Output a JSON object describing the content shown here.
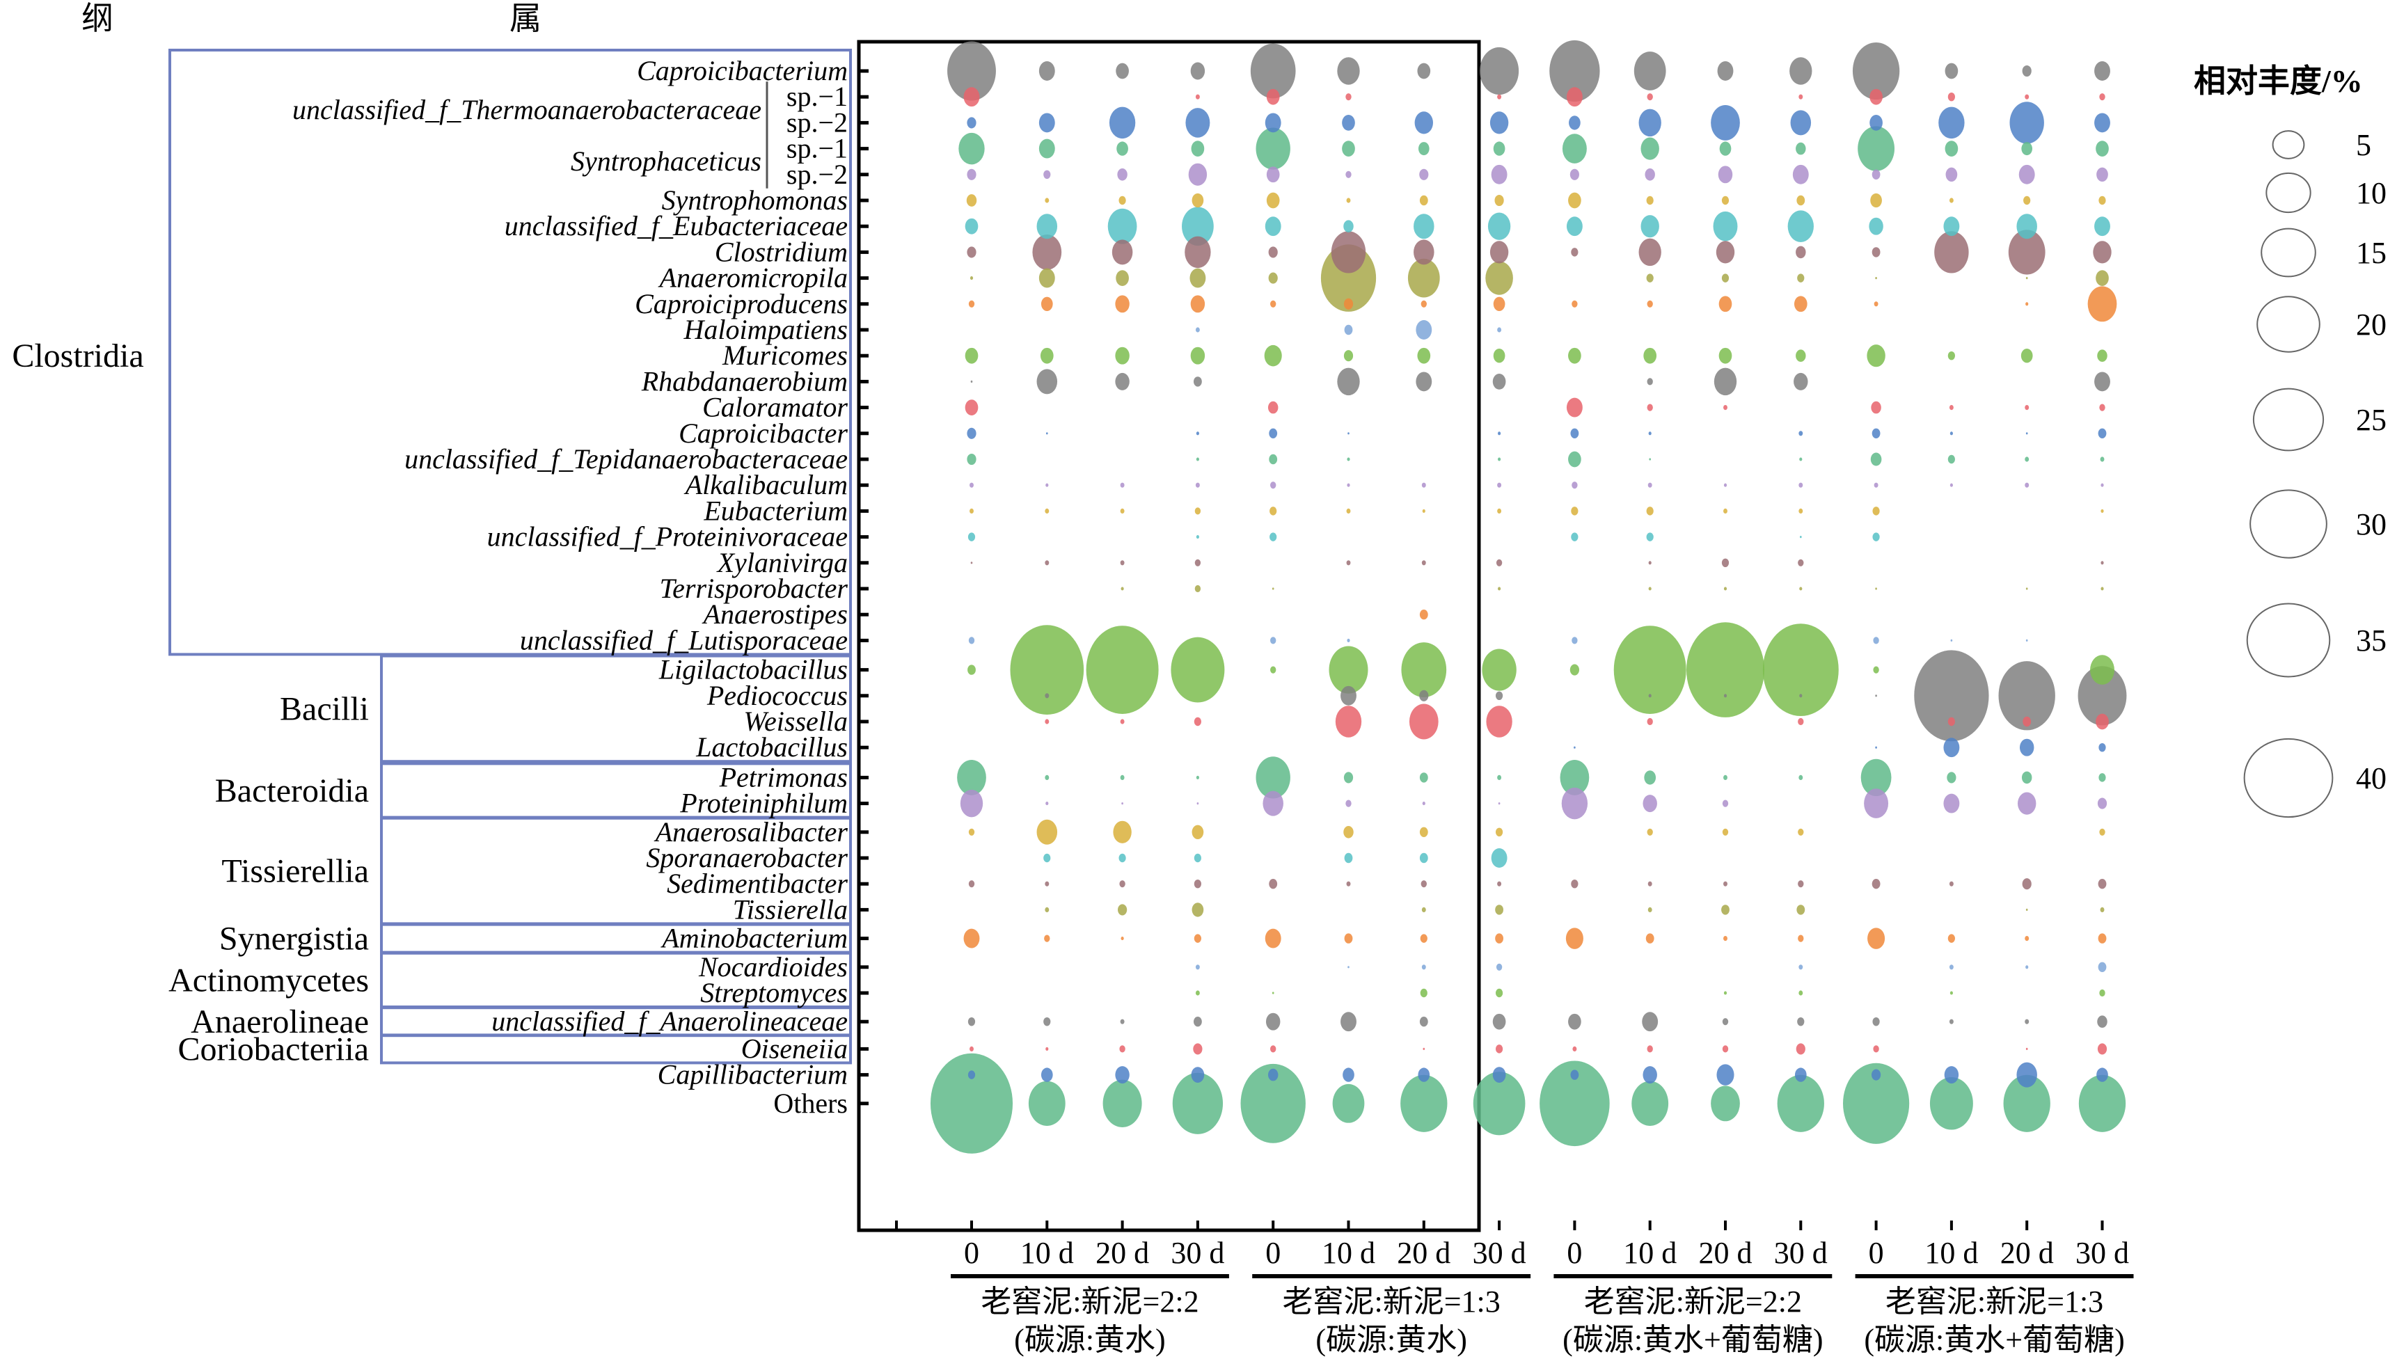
{
  "chart_data": {
    "type": "bubble",
    "title": "",
    "header_class": "纲",
    "header_genus": "属",
    "size_legend": {
      "title": "相对丰度/%",
      "values": [
        5,
        10,
        15,
        20,
        25,
        30,
        35,
        40
      ],
      "labels": [
        "5",
        "10",
        "15",
        "20",
        "25",
        "30",
        "35",
        "40"
      ]
    },
    "x_tick_labels": [
      "0",
      "10 d",
      "20 d",
      "30 d",
      "0",
      "10 d",
      "20 d",
      "30 d",
      "0",
      "10 d",
      "20 d",
      "30 d",
      "0",
      "10 d",
      "20 d",
      "30 d"
    ],
    "groups": [
      {
        "line1": "老窖泥:新泥=2:2",
        "line2": "(碳源:黄水)"
      },
      {
        "line1": "老窖泥:新泥=1:3",
        "line2": "(碳源:黄水)"
      },
      {
        "line1": "老窖泥:新泥=2:2",
        "line2": "(碳源:黄水+葡萄糖)"
      },
      {
        "line1": "老窖泥:新泥=1:3",
        "line2": "(碳源:黄水+葡萄糖)"
      }
    ],
    "classes": [
      {
        "name": "Clostridia",
        "from": 0,
        "to": 22
      },
      {
        "name": "Bacilli",
        "from": 23,
        "to": 26
      },
      {
        "name": "Bacteroidia",
        "from": 27,
        "to": 28
      },
      {
        "name": "Tissierellia",
        "from": 29,
        "to": 32
      },
      {
        "name": "Synergistia",
        "from": 33,
        "to": 33
      },
      {
        "name": "Actinomycetes",
        "from": 34,
        "to": 35
      },
      {
        "name": "Anaerolineae",
        "from": 36,
        "to": 36
      },
      {
        "name": "Coriobacteriia",
        "from": 37,
        "to": 37
      }
    ],
    "bracket_groups": [
      {
        "name": "unclassified_f_Thermoanaerobacteraceae",
        "rows": [
          1,
          2
        ]
      },
      {
        "name": "Syntrophaceticus",
        "rows": [
          3,
          4
        ]
      }
    ],
    "rows": [
      {
        "label": "Caproicibacterium",
        "italic": true,
        "color": "#808080",
        "values": [
          14,
          1.5,
          1,
          1.2,
          12,
          3,
          1,
          9,
          15,
          6,
          1.5,
          3,
          13,
          1,
          0.5,
          1.5
        ]
      },
      {
        "label": "sp.−1",
        "italic": false,
        "color": "#e8636b",
        "values": [
          1.5,
          0,
          0,
          0.1,
          1,
          0.2,
          0,
          0.1,
          1.5,
          0.2,
          0,
          0.1,
          1,
          0.3,
          0.1,
          0.2
        ]
      },
      {
        "label": "sp.−2",
        "italic": false,
        "color": "#4f81c7",
        "values": [
          0.5,
          1.5,
          4,
          3.5,
          1.5,
          1,
          2,
          2,
          0.8,
          3,
          5,
          2.5,
          1,
          4,
          7,
          1.5
        ]
      },
      {
        "label": "sp.−1",
        "italic": false,
        "color": "#5fba8a",
        "values": [
          4,
          1.5,
          0.8,
          1,
          7,
          1,
          0.7,
          0.8,
          3.5,
          2,
          0.8,
          0.6,
          8,
          1,
          0.7,
          1
        ]
      },
      {
        "label": "sp.−2",
        "italic": false,
        "color": "#ad8fcb",
        "values": [
          0.5,
          0.3,
          0.6,
          2,
          1,
          0.2,
          0.5,
          1.5,
          0.5,
          0.6,
          1.2,
          1.5,
          0.4,
          0.8,
          1.5,
          0.8
        ]
      },
      {
        "label": "Syntrophomonas",
        "italic": true,
        "color": "#d9b03b",
        "values": [
          0.6,
          0.1,
          0.3,
          0.8,
          1,
          0.1,
          0.4,
          0.5,
          1,
          0.3,
          0.3,
          0.4,
          0.8,
          0.1,
          0.3,
          0.3
        ]
      },
      {
        "label": "unclassified_f_Eubacteriaceae",
        "italic": true,
        "color": "#56c1c6",
        "values": [
          1,
          2.5,
          5,
          6,
          1.5,
          0.6,
          2.5,
          3,
          1.5,
          2,
          3.5,
          4,
          1.2,
          1.5,
          2.5,
          1.5
        ]
      },
      {
        "label": "Clostridium",
        "italic": true,
        "color": "#9b6e74",
        "values": [
          0.5,
          5,
          2.5,
          4,
          0.5,
          7,
          2.5,
          2,
          0.3,
          3,
          2,
          0.6,
          0.4,
          7,
          8,
          2
        ]
      },
      {
        "label": "Anaeromicropila",
        "italic": true,
        "color": "#a8a84a",
        "values": [
          0.05,
          1.5,
          1,
          1.5,
          0.5,
          18,
          6,
          4.5,
          0,
          0.3,
          0.3,
          0.3,
          0.02,
          0,
          0.02,
          1
        ]
      },
      {
        "label": "Caproiciproducens",
        "italic": true,
        "color": "#f0883a",
        "values": [
          0.2,
          0.8,
          1.2,
          1.2,
          0.2,
          0.5,
          0.2,
          0.8,
          0.2,
          0.2,
          1,
          1,
          0.1,
          0,
          0.05,
          5
        ]
      },
      {
        "label": "Haloimpatiens",
        "italic": true,
        "color": "#7ea6d8",
        "values": [
          0,
          0,
          0,
          0.1,
          0,
          0.4,
          1.5,
          0.1,
          0,
          0,
          0,
          0,
          0,
          0,
          0,
          0
        ]
      },
      {
        "label": "Muricomes",
        "italic": true,
        "color": "#7cbd4f",
        "values": [
          1,
          1,
          1.2,
          1.2,
          1.8,
          0.5,
          1,
          0.8,
          1,
          1,
          1,
          0.6,
          2,
          0.3,
          0.8,
          0.6
        ]
      },
      {
        "label": "Rhabdanaerobium",
        "italic": true,
        "color": "#808080",
        "values": [
          0.02,
          2.5,
          1.2,
          0.4,
          0,
          3,
          1.5,
          1,
          0,
          0.2,
          3,
          1.2,
          0,
          0,
          0,
          1.5
        ]
      },
      {
        "label": "Caloramator",
        "italic": true,
        "color": "#e8636b",
        "values": [
          1,
          0,
          0,
          0,
          0.6,
          0,
          0,
          0,
          1.5,
          0.2,
          0.1,
          0,
          0.6,
          0.1,
          0.1,
          0.2
        ]
      },
      {
        "label": "Caproicibacter",
        "italic": true,
        "color": "#4f81c7",
        "values": [
          0.5,
          0.02,
          0,
          0.05,
          0.4,
          0.02,
          0,
          0.05,
          0.4,
          0.05,
          0,
          0.1,
          0.4,
          0.05,
          0.02,
          0.4
        ]
      },
      {
        "label": "unclassified_f_Tepidanaerobacteraceae",
        "italic": true,
        "color": "#5fba8a",
        "values": [
          0.5,
          0,
          0,
          0.05,
          0.4,
          0.05,
          0,
          0.05,
          1,
          0.02,
          0,
          0.05,
          0.7,
          0.3,
          0.1,
          0.1
        ]
      },
      {
        "label": "Alkalibaculum",
        "italic": true,
        "color": "#ad8fcb",
        "values": [
          0.1,
          0.05,
          0.1,
          0.1,
          0.2,
          0.05,
          0.1,
          0.1,
          0.2,
          0.1,
          0.05,
          0.1,
          0.1,
          0.05,
          0.1,
          0.05
        ]
      },
      {
        "label": "Eubacterium",
        "italic": true,
        "color": "#d9b03b",
        "values": [
          0.1,
          0.1,
          0.1,
          0.2,
          0.3,
          0.1,
          0.05,
          0.1,
          0.3,
          0.3,
          0.1,
          0.1,
          0.3,
          0,
          0,
          0.05
        ]
      },
      {
        "label": "unclassified_f_Proteinivoraceae",
        "italic": true,
        "color": "#56c1c6",
        "values": [
          0.3,
          0,
          0,
          0.05,
          0.3,
          0,
          0,
          0,
          0.3,
          0.3,
          0,
          0.02,
          0.3,
          0,
          0,
          0
        ]
      },
      {
        "label": "Xylanivirga",
        "italic": true,
        "color": "#9b6e74",
        "values": [
          0.02,
          0.1,
          0.1,
          0.2,
          0,
          0.1,
          0.1,
          0.2,
          0,
          0.05,
          0.3,
          0.2,
          0,
          0,
          0,
          0.05
        ]
      },
      {
        "label": "Terrisporobacter",
        "italic": true,
        "color": "#a8a84a",
        "values": [
          0,
          0,
          0.05,
          0.2,
          0.02,
          0,
          0,
          0.05,
          0,
          0.05,
          0.05,
          0.05,
          0.02,
          0,
          0.02,
          0.05
        ]
      },
      {
        "label": "Anaerostipes",
        "italic": true,
        "color": "#f0883a",
        "values": [
          0,
          0,
          0,
          0,
          0,
          0,
          0.4,
          0,
          0,
          0,
          0,
          0,
          0,
          0,
          0,
          0
        ]
      },
      {
        "label": "unclassified_f_Lutisporaceae",
        "italic": true,
        "color": "#7ea6d8",
        "values": [
          0.2,
          0,
          0,
          0,
          0.2,
          0.05,
          0,
          0,
          0.2,
          0,
          0,
          0,
          0.2,
          0.02,
          0.02,
          0
        ]
      },
      {
        "label": "Ligilactobacillus",
        "italic": true,
        "color": "#7cbd4f",
        "values": [
          0.4,
          32,
          31,
          17,
          0.2,
          9,
          12,
          7,
          0.5,
          31,
          36,
          34,
          0.2,
          0,
          0,
          3.5
        ]
      },
      {
        "label": "Pediococcus",
        "italic": true,
        "color": "#808080",
        "values": [
          0,
          0.1,
          0,
          0,
          0,
          1.5,
          0.5,
          0.3,
          0,
          0.05,
          0.05,
          0.05,
          0.02,
          33,
          19,
          14
        ]
      },
      {
        "label": "Weissella",
        "italic": true,
        "color": "#e8636b",
        "values": [
          0,
          0.1,
          0.1,
          0.3,
          0,
          4,
          5,
          4,
          0,
          0.2,
          0,
          0.2,
          0,
          0.3,
          0.4,
          1
        ]
      },
      {
        "label": "Lactobacillus",
        "italic": true,
        "color": "#4f81c7",
        "values": [
          0,
          0,
          0,
          0,
          0,
          0,
          0,
          0,
          0.02,
          0,
          0,
          0,
          0.02,
          1.5,
          1.2,
          0.3
        ]
      },
      {
        "label": "Petrimonas",
        "italic": true,
        "color": "#5fba8a",
        "values": [
          5,
          0.1,
          0.1,
          0.05,
          7,
          0.5,
          0.4,
          0.1,
          5,
          0.8,
          0.1,
          0.1,
          5.5,
          0.5,
          0.6,
          0.3
        ]
      },
      {
        "label": "Proteiniphilum",
        "italic": true,
        "color": "#ad8fcb",
        "values": [
          3,
          0.05,
          0.02,
          0.02,
          2.5,
          0.2,
          0.05,
          0.02,
          4,
          1.2,
          0.2,
          0,
          3.5,
          1.5,
          2,
          0.5
        ]
      },
      {
        "label": "Anaerosalibacter",
        "italic": true,
        "color": "#d9b03b",
        "values": [
          0.2,
          2.5,
          2,
          0.8,
          0,
          0.6,
          0.4,
          0.3,
          0,
          0.2,
          0.2,
          0.2,
          0,
          0,
          0,
          0.2
        ]
      },
      {
        "label": "Sporanaerobacter",
        "italic": true,
        "color": "#56c1c6",
        "values": [
          0,
          0.3,
          0.3,
          0.3,
          0,
          0.4,
          0.4,
          1.5,
          0,
          0,
          0,
          0,
          0,
          0,
          0,
          0
        ]
      },
      {
        "label": "Sedimentibacter",
        "italic": true,
        "color": "#9b6e74",
        "values": [
          0.2,
          0.1,
          0.2,
          0.3,
          0.4,
          0.1,
          0.2,
          0.1,
          0.3,
          0.1,
          0.1,
          0.2,
          0.4,
          0.1,
          0.5,
          0.4
        ]
      },
      {
        "label": "Tissierella",
        "italic": true,
        "color": "#a8a84a",
        "values": [
          0,
          0.1,
          0.5,
          0.8,
          0,
          0,
          0.1,
          0.4,
          0,
          0.1,
          0.4,
          0.4,
          0,
          0,
          0.02,
          0.1
        ]
      },
      {
        "label": "Aminobacterium",
        "italic": true,
        "color": "#f0883a",
        "values": [
          1.5,
          0.2,
          0.05,
          0.3,
          1.5,
          0.4,
          0.3,
          0.4,
          1.8,
          0.4,
          0.1,
          0.2,
          1.8,
          0.3,
          0.1,
          0.4
        ]
      },
      {
        "label": "Nocardioides",
        "italic": true,
        "color": "#7ea6d8",
        "values": [
          0,
          0,
          0,
          0.1,
          0,
          0.02,
          0.1,
          0.2,
          0,
          0,
          0,
          0.1,
          0,
          0.1,
          0.05,
          0.4
        ]
      },
      {
        "label": "Streptomyces",
        "italic": true,
        "color": "#7cbd4f",
        "values": [
          0,
          0,
          0,
          0.1,
          0.02,
          0,
          0.3,
          0.3,
          0,
          0,
          0.05,
          0.1,
          0,
          0.05,
          0,
          0.2
        ]
      },
      {
        "label": "unclassified_f_Anaerolineaceae",
        "italic": true,
        "color": "#808080",
        "values": [
          0.3,
          0.3,
          0.1,
          0.4,
          1.2,
          1.5,
          0.4,
          1,
          1,
          1.5,
          0.2,
          0.3,
          0.3,
          0.1,
          0.1,
          0.6
        ]
      },
      {
        "label": "Oiseneiia",
        "italic": true,
        "color": "#e8636b",
        "values": [
          0.1,
          0.05,
          0.2,
          0.5,
          0.2,
          0,
          0.02,
          0.3,
          0.1,
          0.2,
          0.2,
          0.5,
          0.2,
          0,
          0.02,
          0.5
        ]
      },
      {
        "label": "Capillibacterium",
        "italic": true,
        "color": "#4f81c7",
        "values": [
          0.3,
          0.8,
          1.2,
          1,
          0.6,
          0.8,
          0.8,
          1,
          0.4,
          1.2,
          1.8,
          0.8,
          0.5,
          1.2,
          2.5,
          0.8
        ]
      },
      {
        "label": "Others",
        "italic": false,
        "color": "#5fba8a",
        "values": [
          40,
          8,
          9,
          15,
          25,
          6,
          13,
          16,
          29,
          8,
          5,
          13,
          26,
          11,
          13,
          13
        ]
      }
    ],
    "size_scale_max": 40
  }
}
